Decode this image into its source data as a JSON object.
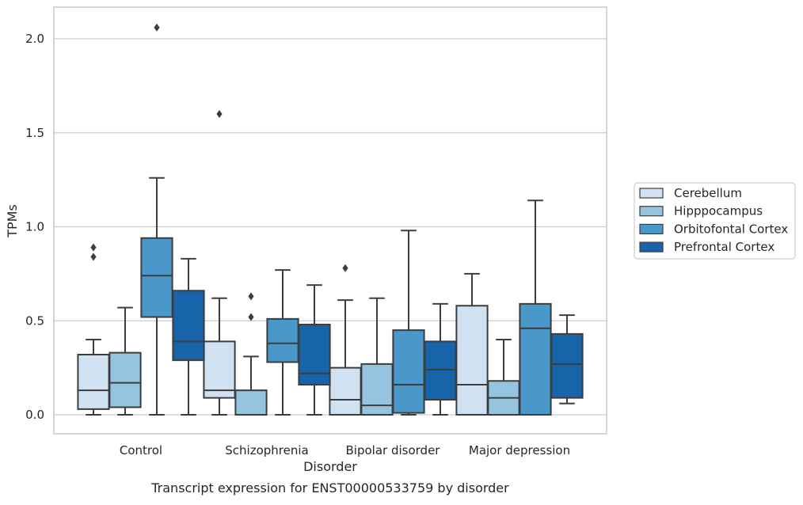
{
  "chart_data": {
    "type": "box",
    "title": "Transcript expression for ENST00000533759 by disorder",
    "xlabel": "Disorder",
    "ylabel": "TPMs",
    "ylim": [
      -0.1,
      2.17
    ],
    "yticks": [
      "0.0",
      "0.5",
      "1.0",
      "1.5",
      "2.0"
    ],
    "grid": true,
    "legend_position": "right",
    "categories": [
      "Control",
      "Schizophrenia",
      "Bipolar disorder",
      "Major depression"
    ],
    "series": [
      {
        "name": "Cerebellum",
        "color": "#d0e1f2",
        "boxes": [
          {
            "whisker_low": 0.0,
            "q1": 0.03,
            "median": 0.13,
            "q3": 0.32,
            "whisker_high": 0.4,
            "outliers": [
              0.84,
              0.89
            ]
          },
          {
            "whisker_low": 0.0,
            "q1": 0.09,
            "median": 0.13,
            "q3": 0.39,
            "whisker_high": 0.62,
            "outliers": [
              1.6
            ]
          },
          {
            "whisker_low": 0.0,
            "q1": 0.0,
            "median": 0.08,
            "q3": 0.25,
            "whisker_high": 0.61,
            "outliers": [
              0.78
            ]
          },
          {
            "whisker_low": 0.0,
            "q1": 0.0,
            "median": 0.16,
            "q3": 0.58,
            "whisker_high": 0.75,
            "outliers": []
          }
        ]
      },
      {
        "name": "Hipppocampus",
        "color": "#94c4df",
        "boxes": [
          {
            "whisker_low": 0.0,
            "q1": 0.04,
            "median": 0.17,
            "q3": 0.33,
            "whisker_high": 0.57,
            "outliers": []
          },
          {
            "whisker_low": 0.0,
            "q1": 0.0,
            "median": 0.0,
            "q3": 0.13,
            "whisker_high": 0.31,
            "outliers": [
              0.52,
              0.63
            ]
          },
          {
            "whisker_low": 0.0,
            "q1": 0.0,
            "median": 0.05,
            "q3": 0.27,
            "whisker_high": 0.62,
            "outliers": []
          },
          {
            "whisker_low": 0.0,
            "q1": 0.0,
            "median": 0.09,
            "q3": 0.18,
            "whisker_high": 0.4,
            "outliers": []
          }
        ]
      },
      {
        "name": "Orbitofontal Cortex",
        "color": "#4a98c9",
        "boxes": [
          {
            "whisker_low": 0.0,
            "q1": 0.52,
            "median": 0.74,
            "q3": 0.94,
            "whisker_high": 1.26,
            "outliers": [
              2.06
            ]
          },
          {
            "whisker_low": 0.0,
            "q1": 0.28,
            "median": 0.38,
            "q3": 0.51,
            "whisker_high": 0.77,
            "outliers": []
          },
          {
            "whisker_low": 0.0,
            "q1": 0.01,
            "median": 0.16,
            "q3": 0.45,
            "whisker_high": 0.98,
            "outliers": []
          },
          {
            "whisker_low": 0.0,
            "q1": 0.0,
            "median": 0.46,
            "q3": 0.59,
            "whisker_high": 1.14,
            "outliers": []
          }
        ]
      },
      {
        "name": "Prefrontal Cortex",
        "color": "#1764ab",
        "boxes": [
          {
            "whisker_low": 0.0,
            "q1": 0.29,
            "median": 0.39,
            "q3": 0.66,
            "whisker_high": 0.83,
            "outliers": []
          },
          {
            "whisker_low": 0.0,
            "q1": 0.16,
            "median": 0.22,
            "q3": 0.48,
            "whisker_high": 0.69,
            "outliers": []
          },
          {
            "whisker_low": 0.0,
            "q1": 0.08,
            "median": 0.24,
            "q3": 0.39,
            "whisker_high": 0.59,
            "outliers": []
          },
          {
            "whisker_low": 0.06,
            "q1": 0.09,
            "median": 0.27,
            "q3": 0.43,
            "whisker_high": 0.53,
            "outliers": []
          }
        ]
      }
    ]
  }
}
